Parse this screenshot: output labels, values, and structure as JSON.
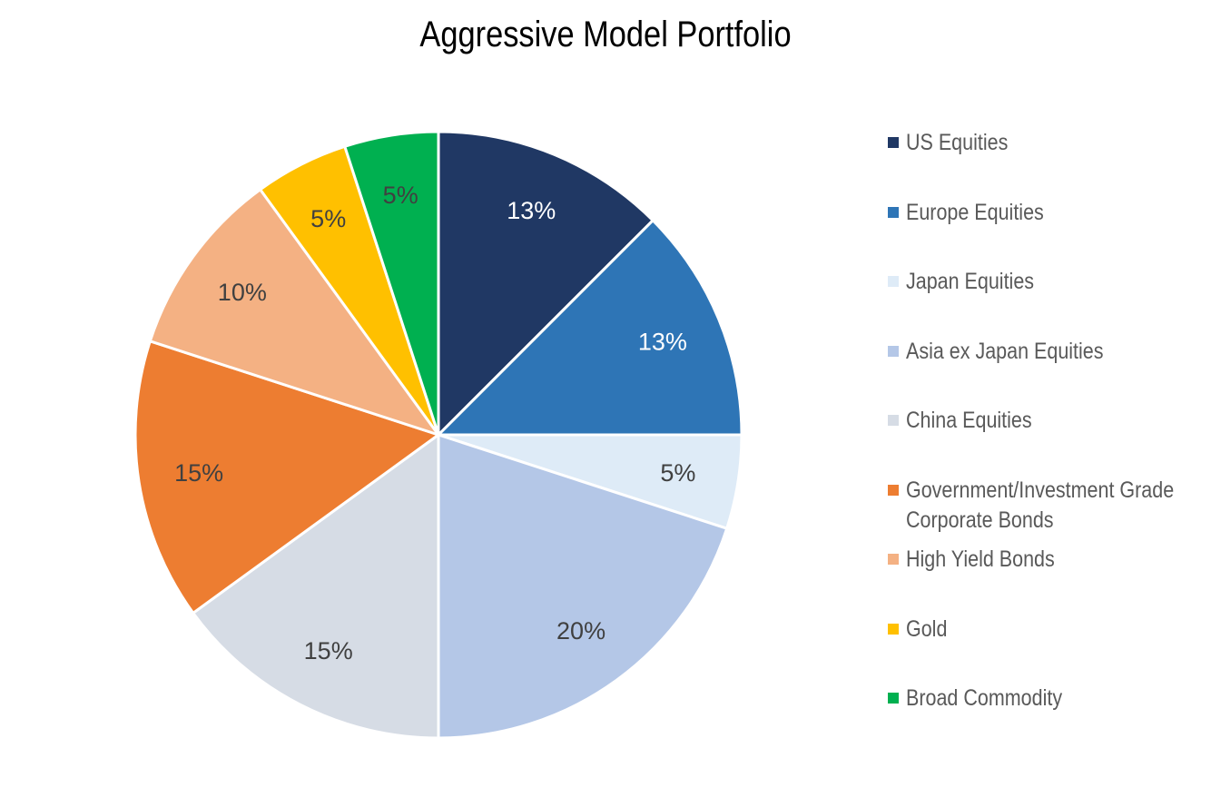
{
  "chart_data": {
    "type": "pie",
    "title": "Aggressive Model Portfolio",
    "categories": [
      "US Equities",
      "Europe Equities",
      "Japan Equities",
      "Asia ex Japan Equities",
      "China Equities",
      "Government/Investment Grade Corporate Bonds",
      "High Yield Bonds",
      "Gold",
      "Broad Commodity"
    ],
    "values": [
      12.5,
      12.5,
      5,
      20,
      15,
      15,
      10,
      5,
      5
    ],
    "value_labels": [
      "13%",
      "13%",
      "5%",
      "20%",
      "15%",
      "15%",
      "10%",
      "5%",
      "5%"
    ],
    "colors": [
      "#203864",
      "#2E75B6",
      "#DEEBF7",
      "#B4C7E7",
      "#D6DCE5",
      "#ED7D31",
      "#F4B183",
      "#FFC000",
      "#00B050"
    ],
    "label_colors": [
      "#ffffff",
      "#ffffff",
      "#404040",
      "#404040",
      "#404040",
      "#404040",
      "#404040",
      "#404040",
      "#404040"
    ],
    "legend_position": "right"
  }
}
